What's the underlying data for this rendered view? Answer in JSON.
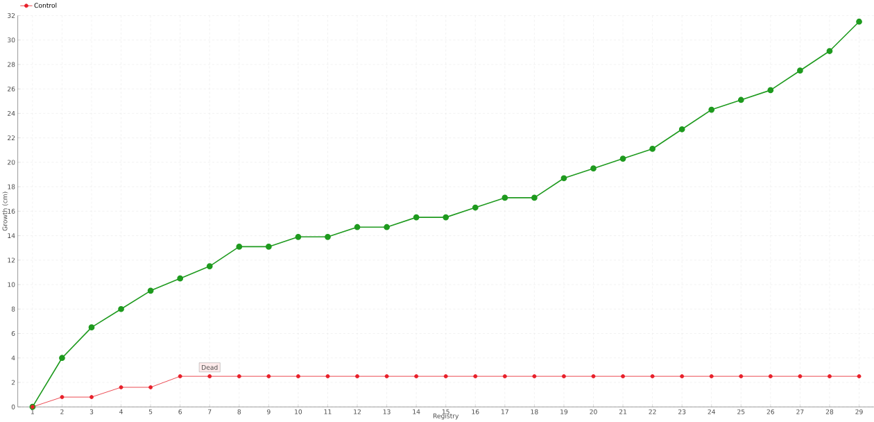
{
  "chart_data": {
    "type": "line",
    "xlabel": "Registry",
    "ylabel": "Growth (cm)",
    "categories": [
      "1",
      "2",
      "3",
      "4",
      "5",
      "6",
      "7",
      "8",
      "9",
      "10",
      "11",
      "12",
      "13",
      "14",
      "15",
      "16",
      "17",
      "18",
      "19",
      "20",
      "21",
      "22",
      "23",
      "24",
      "25",
      "26",
      "27",
      "28",
      "29"
    ],
    "series": [
      {
        "color": "#1e9a1e",
        "values": [
          0,
          4.0,
          6.5,
          8.0,
          9.5,
          10.5,
          11.5,
          13.1,
          13.1,
          13.9,
          13.9,
          14.7,
          14.7,
          15.5,
          15.5,
          16.3,
          17.1,
          17.1,
          18.7,
          19.5,
          20.3,
          21.1,
          22.7,
          24.3,
          25.1,
          25.9,
          27.5,
          29.1,
          31.5
        ]
      },
      {
        "name": "Control",
        "color": "#e8202a",
        "values": [
          0,
          0.8,
          0.8,
          1.6,
          1.6,
          2.5,
          2.5,
          2.5,
          2.5,
          2.5,
          2.5,
          2.5,
          2.5,
          2.5,
          2.5,
          2.5,
          2.5,
          2.5,
          2.5,
          2.5,
          2.5,
          2.5,
          2.5,
          2.5,
          2.5,
          2.5,
          2.5,
          2.5,
          2.5
        ]
      }
    ],
    "ylim": [
      0,
      32
    ],
    "yticks": [
      0,
      2,
      4,
      6,
      8,
      10,
      12,
      14,
      16,
      18,
      20,
      22,
      24,
      26,
      28,
      30,
      32
    ],
    "grid": true,
    "legend": "top left",
    "marker": "circle",
    "line_style": "solid",
    "annotations": [
      {
        "text": "Dead",
        "x": "7",
        "y": 2.5
      }
    ]
  }
}
